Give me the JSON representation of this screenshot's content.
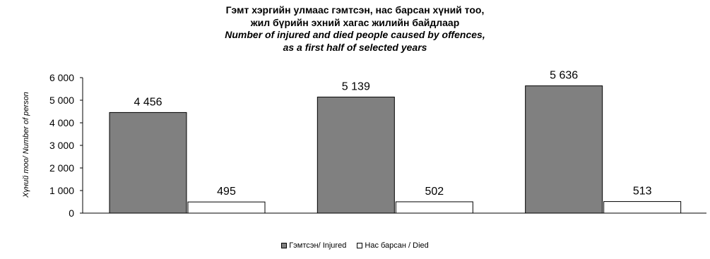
{
  "chart_data": {
    "type": "bar",
    "title_lines": [
      "Гэмт хэргийн улмаас гэмтсэн, нас барсан хүний тоо,",
      "жил бүрийн эхний хагас жилийн байдлаар",
      "Number of injured and died people caused by offences,",
      "as a first half of selected years"
    ],
    "xlabel": "",
    "ylabel": "Хүний тоо/ Number of person",
    "ylim": [
      0,
      6000
    ],
    "yticks": [
      "0",
      "1 000",
      "2 000",
      "3 000",
      "4 000",
      "5 000",
      "6 000"
    ],
    "yticks_values": [
      0,
      1000,
      2000,
      3000,
      4000,
      5000,
      6000
    ],
    "categories": [
      "",
      "",
      ""
    ],
    "series": [
      {
        "name": "Гэмтсэн/ Injured",
        "values": [
          4456,
          5139,
          5636
        ],
        "labels": [
          "4 456",
          "5 139",
          "5 636"
        ],
        "color": "#808080"
      },
      {
        "name": "Нас барсан / Died",
        "values": [
          495,
          502,
          513
        ],
        "labels": [
          "495",
          "502",
          "513"
        ],
        "color": "#ffffff"
      }
    ],
    "legend_position": "bottom",
    "grid": false
  }
}
